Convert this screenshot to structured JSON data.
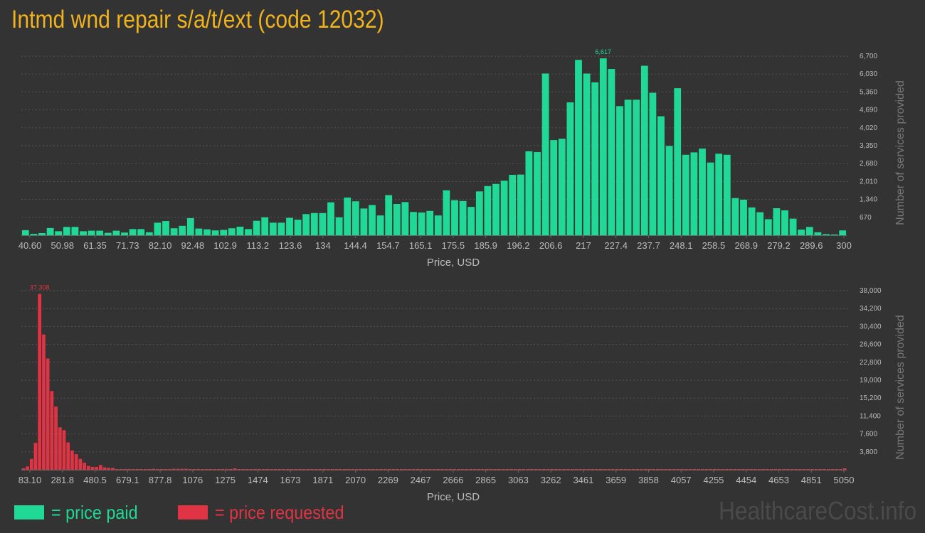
{
  "title": "Intmd wnd repair s/a/t/ext (code 12032)",
  "colors": {
    "background": "#333333",
    "title": "#f0b31c",
    "paid": "#20d996",
    "requested": "#e03444",
    "axis_text": "#bbbbbb",
    "grid": "#555555"
  },
  "legend": {
    "paid_label": "= price paid",
    "requested_label": "= price requested"
  },
  "watermark": "HealthcareCost.info",
  "chart_data": [
    {
      "type": "bar",
      "series_name": "price paid",
      "color": "#20d996",
      "xlabel": "Price, USD",
      "ylabel": "Number of services provided",
      "ylim": [
        0,
        6700
      ],
      "y_ticks": [
        "670",
        "1,340",
        "2,010",
        "2,680",
        "3,350",
        "4,020",
        "4,690",
        "5,360",
        "6,030",
        "6,700"
      ],
      "x_ticks": [
        "40.60",
        "50.98",
        "61.35",
        "71.73",
        "82.10",
        "92.48",
        "102.9",
        "113.2",
        "123.6",
        "134",
        "144.4",
        "154.7",
        "165.1",
        "175.5",
        "185.9",
        "196.2",
        "206.6",
        "217",
        "227.4",
        "237.7",
        "248.1",
        "258.5",
        "268.9",
        "279.2",
        "289.6",
        "300"
      ],
      "peak_label": "6,617",
      "grid": true,
      "values": [
        190,
        50,
        80,
        270,
        150,
        310,
        310,
        150,
        170,
        170,
        90,
        170,
        100,
        230,
        230,
        110,
        470,
        530,
        260,
        350,
        640,
        250,
        220,
        180,
        200,
        260,
        320,
        230,
        540,
        670,
        470,
        470,
        650,
        580,
        790,
        830,
        830,
        1230,
        670,
        1410,
        1270,
        1000,
        1130,
        740,
        1500,
        1170,
        1240,
        870,
        850,
        910,
        740,
        1680,
        1310,
        1280,
        1060,
        1640,
        1840,
        1920,
        2040,
        2260,
        2270,
        3140,
        3110,
        6050,
        3560,
        3610,
        4970,
        6560,
        6050,
        5720,
        6617,
        6220,
        4830,
        5070,
        5070,
        6340,
        5330,
        4450,
        3340,
        5500,
        3010,
        3100,
        3240,
        2720,
        3050,
        3010,
        1390,
        1330,
        1040,
        860,
        600,
        1010,
        930,
        620,
        210,
        310,
        110,
        40,
        20,
        180
      ]
    },
    {
      "type": "bar",
      "series_name": "price requested",
      "color": "#e03444",
      "xlabel": "Price, USD",
      "ylabel": "Number of services provided",
      "ylim": [
        0,
        38000
      ],
      "y_ticks": [
        "3,800",
        "7,600",
        "11,400",
        "15,200",
        "19,000",
        "22,800",
        "26,600",
        "30,400",
        "34,200",
        "38,000"
      ],
      "x_ticks": [
        "83.10",
        "281.8",
        "480.5",
        "679.1",
        "877.8",
        "1076",
        "1275",
        "1474",
        "1673",
        "1871",
        "2070",
        "2269",
        "2467",
        "2666",
        "2865",
        "3063",
        "3262",
        "3461",
        "3659",
        "3858",
        "4057",
        "4255",
        "4454",
        "4653",
        "4851",
        "5050"
      ],
      "peak_label": "37,308",
      "grid": true,
      "values": [
        300,
        700,
        2300,
        5700,
        37308,
        28700,
        23600,
        16700,
        13400,
        9000,
        8400,
        5800,
        4100,
        3300,
        2300,
        1500,
        800,
        600,
        600,
        1000,
        500,
        400,
        400,
        150,
        150,
        150,
        150,
        150,
        100,
        100,
        100,
        100,
        200,
        100,
        100,
        100,
        100,
        200,
        200,
        200,
        200,
        100,
        100,
        100,
        100,
        100,
        100,
        100,
        100,
        100,
        100,
        100,
        300,
        100,
        100,
        100,
        50,
        50,
        50,
        50,
        50,
        50,
        50,
        50,
        50,
        50,
        50,
        50,
        50,
        50,
        50,
        50,
        150,
        150,
        50,
        50,
        50,
        50,
        50,
        50,
        50,
        50,
        50,
        50,
        50,
        50,
        50,
        50,
        50,
        50,
        50,
        50,
        50,
        50,
        50,
        50,
        50,
        50,
        50,
        50,
        50,
        50,
        50,
        50,
        50,
        50,
        50,
        50,
        50,
        50,
        50,
        50,
        50,
        50,
        50,
        50,
        50,
        50,
        50,
        50,
        50,
        50,
        50,
        50,
        150,
        50,
        50,
        50,
        50,
        50,
        50,
        50,
        50,
        50,
        50,
        50,
        50,
        50,
        50,
        50,
        50,
        50,
        50,
        50,
        50,
        50,
        50,
        50,
        50,
        50,
        50,
        50,
        50,
        50,
        50,
        50,
        50,
        50,
        50,
        50,
        50,
        50,
        50,
        50,
        50,
        50,
        50,
        50,
        50,
        50,
        50,
        50,
        50,
        50,
        50,
        50,
        50,
        50,
        50,
        50,
        50,
        50,
        50,
        50,
        50,
        50,
        50,
        50,
        50,
        50,
        50,
        50,
        50,
        50,
        50,
        50,
        50,
        50,
        50,
        50,
        50,
        50,
        300
      ]
    }
  ]
}
